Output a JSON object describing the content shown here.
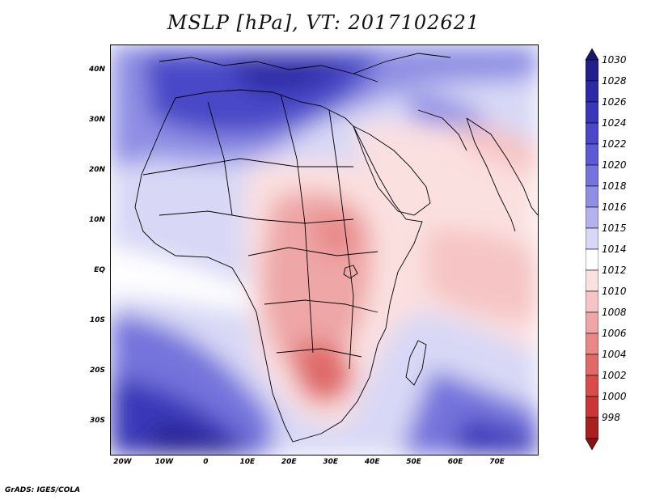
{
  "title": "MSLP [hPa], VT: 2017102621",
  "footer": "GrADS: IGES/COLA",
  "map": {
    "lon_range": [
      -23,
      80
    ],
    "lat_range": [
      -37,
      45
    ],
    "y_ticks": [
      {
        "lat": 40,
        "label": "40N"
      },
      {
        "lat": 30,
        "label": "30N"
      },
      {
        "lat": 20,
        "label": "20N"
      },
      {
        "lat": 10,
        "label": "10N"
      },
      {
        "lat": 0,
        "label": "EQ"
      },
      {
        "lat": -10,
        "label": "10S"
      },
      {
        "lat": -20,
        "label": "20S"
      },
      {
        "lat": -30,
        "label": "30S"
      }
    ],
    "x_ticks": [
      {
        "lon": -20,
        "label": "20W"
      },
      {
        "lon": -10,
        "label": "10W"
      },
      {
        "lon": 0,
        "label": "0"
      },
      {
        "lon": 10,
        "label": "10E"
      },
      {
        "lon": 20,
        "label": "20E"
      },
      {
        "lon": 30,
        "label": "30E"
      },
      {
        "lon": 40,
        "label": "40E"
      },
      {
        "lon": 50,
        "label": "50E"
      },
      {
        "lon": 60,
        "label": "60E"
      },
      {
        "lon": 70,
        "label": "70E"
      }
    ]
  },
  "colorbar": {
    "levels": [
      {
        "label": "1030",
        "color": "#231f8c"
      },
      {
        "label": "1028",
        "color": "#2d2aa5"
      },
      {
        "label": "1026",
        "color": "#3a38b8"
      },
      {
        "label": "1024",
        "color": "#4a48c8"
      },
      {
        "label": "1022",
        "color": "#5d5bd4"
      },
      {
        "label": "1020",
        "color": "#7573dc"
      },
      {
        "label": "1018",
        "color": "#908fe4"
      },
      {
        "label": "1016",
        "color": "#b3b2ed"
      },
      {
        "label": "1015",
        "color": "#d8d8f6"
      },
      {
        "label": "1014",
        "color": "#ffffff"
      },
      {
        "label": "1012",
        "color": "#fbe0e0"
      },
      {
        "label": "1010",
        "color": "#f6c4c4"
      },
      {
        "label": "1008",
        "color": "#eea6a6"
      },
      {
        "label": "1006",
        "color": "#e88888"
      },
      {
        "label": "1004",
        "color": "#e06a6a"
      },
      {
        "label": "1002",
        "color": "#d84c4c"
      },
      {
        "label": "1000",
        "color": "#c83636"
      },
      {
        "label": "998",
        "color": "#a82020"
      }
    ],
    "top_color": "#1a1670",
    "bottom_color": "#8a1414"
  }
}
